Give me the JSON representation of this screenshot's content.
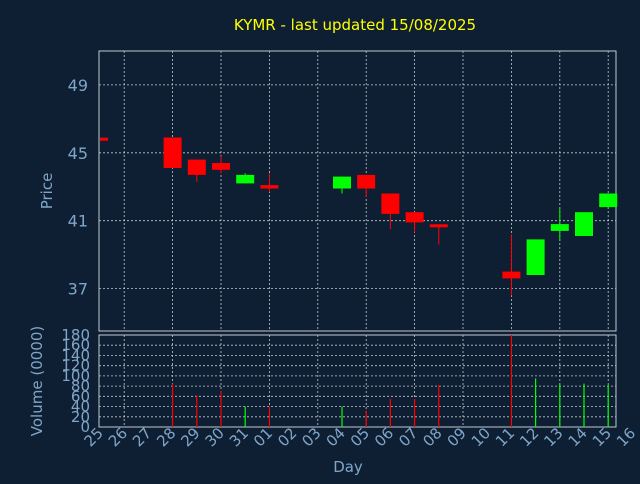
{
  "colors": {
    "background": "#0f1f33",
    "title": "#ffff00",
    "axis_text": "#7fa6c9",
    "grid": "#c0c8d0",
    "frame": "#c0c8d0",
    "up": "#00ff00",
    "down": "#ff0000"
  },
  "chart_data": {
    "type": "candlestick",
    "title": "KYMR - last updated 15/08/2025",
    "xlabel": "Day",
    "ylabel": "Price",
    "ylim": [
      34.5,
      51
    ],
    "yticks": [
      37,
      41,
      45,
      49
    ],
    "x_ticks": [
      "25",
      "26",
      "27",
      "28",
      "29",
      "30",
      "31",
      "01",
      "02",
      "03",
      "04",
      "05",
      "06",
      "07",
      "08",
      "09",
      "10",
      "11",
      "12",
      "13",
      "14",
      "15",
      "16"
    ],
    "grid": true,
    "candles": [
      {
        "x": "25",
        "open": 45.8,
        "close": 45.8,
        "high": 45.8,
        "low": 45.8
      },
      {
        "x": "28",
        "open": 45.9,
        "close": 44.1,
        "high": 45.9,
        "low": 44.1
      },
      {
        "x": "29",
        "open": 44.6,
        "close": 43.7,
        "high": 44.6,
        "low": 43.3
      },
      {
        "x": "30",
        "open": 44.4,
        "close": 44.0,
        "high": 44.8,
        "low": 43.8
      },
      {
        "x": "31",
        "open": 43.2,
        "close": 43.7,
        "high": 43.8,
        "low": 43.2
      },
      {
        "x": "01",
        "open": 43.1,
        "close": 42.9,
        "high": 43.8,
        "low": 42.7
      },
      {
        "x": "04",
        "open": 42.9,
        "close": 43.6,
        "high": 43.6,
        "low": 42.6
      },
      {
        "x": "05",
        "open": 43.7,
        "close": 42.9,
        "high": 43.7,
        "low": 42.4
      },
      {
        "x": "06",
        "open": 42.6,
        "close": 41.4,
        "high": 42.6,
        "low": 40.5
      },
      {
        "x": "07",
        "open": 41.5,
        "close": 40.9,
        "high": 41.5,
        "low": 40.3
      },
      {
        "x": "08",
        "open": 40.7,
        "close": 40.7,
        "high": 40.7,
        "low": 39.6
      },
      {
        "x": "11",
        "open": 38.0,
        "close": 37.6,
        "high": 40.2,
        "low": 36.6
      },
      {
        "x": "12",
        "open": 37.8,
        "close": 39.9,
        "high": 39.9,
        "low": 37.8
      },
      {
        "x": "13",
        "open": 40.4,
        "close": 40.8,
        "high": 41.8,
        "low": 39.8
      },
      {
        "x": "14",
        "open": 40.1,
        "close": 41.5,
        "high": 41.5,
        "low": 40.1
      },
      {
        "x": "15",
        "open": 41.8,
        "close": 42.6,
        "high": 42.6,
        "low": 41.7
      }
    ],
    "volume": {
      "ylabel": "Volume (0000)",
      "ylim": [
        0,
        180
      ],
      "yticks": [
        0,
        20,
        40,
        60,
        80,
        100,
        120,
        140,
        160,
        180
      ],
      "values": [
        {
          "x": "28",
          "value": 85,
          "dir": "down"
        },
        {
          "x": "29",
          "value": 62,
          "dir": "down"
        },
        {
          "x": "30",
          "value": 70,
          "dir": "down"
        },
        {
          "x": "31",
          "value": 40,
          "dir": "up"
        },
        {
          "x": "01",
          "value": 40,
          "dir": "down"
        },
        {
          "x": "04",
          "value": 40,
          "dir": "up"
        },
        {
          "x": "05",
          "value": 32,
          "dir": "down"
        },
        {
          "x": "06",
          "value": 55,
          "dir": "down"
        },
        {
          "x": "07",
          "value": 55,
          "dir": "down"
        },
        {
          "x": "08",
          "value": 82,
          "dir": "down"
        },
        {
          "x": "11",
          "value": 180,
          "dir": "down"
        },
        {
          "x": "12",
          "value": 95,
          "dir": "up"
        },
        {
          "x": "13",
          "value": 85,
          "dir": "up"
        },
        {
          "x": "14",
          "value": 85,
          "dir": "up"
        },
        {
          "x": "15",
          "value": 82,
          "dir": "up"
        }
      ]
    }
  }
}
